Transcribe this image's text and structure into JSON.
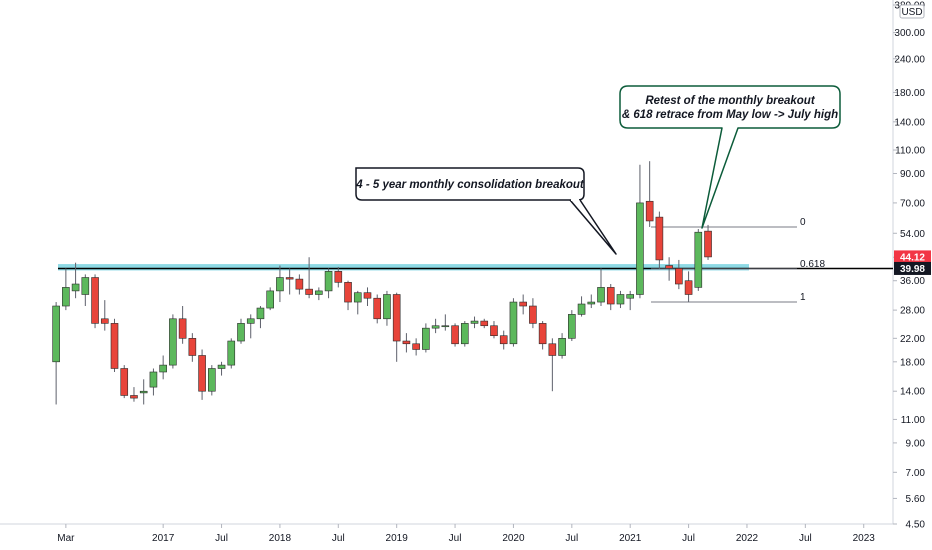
{
  "chart_data": {
    "type": "candlestick",
    "title": "",
    "xlabel": "",
    "ylabel": "",
    "scale": "log",
    "ylim": [
      4.5,
      380.0
    ],
    "currency": "USD",
    "colors": {
      "up": "#5cb85c",
      "down": "#e8443a",
      "wick": "#5d606b",
      "support_band": "#7ad3e0",
      "support_line": "#000000",
      "callout_border": "#0c5c3a",
      "price_tag_red": "#f23645",
      "price_tag_black": "#131722"
    },
    "y_ticks": [
      "380.00",
      "300.00",
      "240.00",
      "180.00",
      "140.00",
      "110.00",
      "90.00",
      "70.00",
      "54.00",
      "44.00",
      "36.00",
      "28.00",
      "22.00",
      "18.00",
      "14.00",
      "11.00",
      "9.00",
      "7.00",
      "5.60",
      "4.50"
    ],
    "x_ticks": [
      "Mar",
      "2017",
      "Jul",
      "2018",
      "Jul",
      "2019",
      "Jul",
      "2020",
      "Jul",
      "2021",
      "Jul",
      "2022",
      "Jul",
      "2023"
    ],
    "candles": [
      {
        "date": "2016-02",
        "o": 18.0,
        "h": 30.0,
        "l": 12.5,
        "c": 29.0
      },
      {
        "date": "2016-03",
        "o": 29.0,
        "h": 40.0,
        "l": 28.0,
        "c": 34.0
      },
      {
        "date": "2016-04",
        "o": 33.0,
        "h": 42.0,
        "l": 31.0,
        "c": 35.0
      },
      {
        "date": "2016-05",
        "o": 32.0,
        "h": 38.0,
        "l": 29.0,
        "c": 37.0
      },
      {
        "date": "2016-06",
        "o": 37.0,
        "h": 38.0,
        "l": 24.0,
        "c": 25.0
      },
      {
        "date": "2016-07",
        "o": 26.0,
        "h": 30.5,
        "l": 23.5,
        "c": 25.0
      },
      {
        "date": "2016-08",
        "o": 25.0,
        "h": 26.0,
        "l": 16.5,
        "c": 17.0
      },
      {
        "date": "2016-09",
        "o": 17.0,
        "h": 17.5,
        "l": 13.2,
        "c": 13.5
      },
      {
        "date": "2016-10",
        "o": 13.5,
        "h": 14.5,
        "l": 12.8,
        "c": 13.2
      },
      {
        "date": "2016-11",
        "o": 13.8,
        "h": 15.5,
        "l": 12.5,
        "c": 14.0
      },
      {
        "date": "2016-12",
        "o": 14.5,
        "h": 17.0,
        "l": 13.5,
        "c": 16.5
      },
      {
        "date": "2017-01",
        "o": 16.5,
        "h": 19.0,
        "l": 15.5,
        "c": 17.5
      },
      {
        "date": "2017-02",
        "o": 17.5,
        "h": 27.0,
        "l": 17.0,
        "c": 26.0
      },
      {
        "date": "2017-03",
        "o": 26.0,
        "h": 29.0,
        "l": 21.0,
        "c": 22.0
      },
      {
        "date": "2017-04",
        "o": 22.0,
        "h": 23.0,
        "l": 18.0,
        "c": 19.0
      },
      {
        "date": "2017-05",
        "o": 19.0,
        "h": 20.0,
        "l": 13.0,
        "c": 14.0
      },
      {
        "date": "2017-06",
        "o": 14.0,
        "h": 17.5,
        "l": 13.5,
        "c": 17.0
      },
      {
        "date": "2017-07",
        "o": 17.0,
        "h": 18.0,
        "l": 16.0,
        "c": 17.5
      },
      {
        "date": "2017-08",
        "o": 17.5,
        "h": 22.0,
        "l": 17.0,
        "c": 21.5
      },
      {
        "date": "2017-09",
        "o": 21.5,
        "h": 26.0,
        "l": 21.0,
        "c": 25.0
      },
      {
        "date": "2017-10",
        "o": 25.0,
        "h": 27.0,
        "l": 22.0,
        "c": 26.0
      },
      {
        "date": "2017-11",
        "o": 26.0,
        "h": 29.0,
        "l": 24.0,
        "c": 28.5
      },
      {
        "date": "2017-12",
        "o": 28.5,
        "h": 34.0,
        "l": 28.0,
        "c": 33.0
      },
      {
        "date": "2018-01",
        "o": 33.0,
        "h": 41.0,
        "l": 30.0,
        "c": 37.0
      },
      {
        "date": "2018-02",
        "o": 37.0,
        "h": 40.0,
        "l": 32.0,
        "c": 36.5
      },
      {
        "date": "2018-03",
        "o": 36.5,
        "h": 38.0,
        "l": 32.0,
        "c": 33.5
      },
      {
        "date": "2018-04",
        "o": 33.5,
        "h": 44.0,
        "l": 31.0,
        "c": 32.0
      },
      {
        "date": "2018-05",
        "o": 32.0,
        "h": 34.0,
        "l": 30.5,
        "c": 33.0
      },
      {
        "date": "2018-06",
        "o": 33.0,
        "h": 40.0,
        "l": 31.0,
        "c": 39.0
      },
      {
        "date": "2018-07",
        "o": 39.0,
        "h": 40.5,
        "l": 34.0,
        "c": 35.5
      },
      {
        "date": "2018-08",
        "o": 35.5,
        "h": 36.0,
        "l": 28.0,
        "c": 30.0
      },
      {
        "date": "2018-09",
        "o": 30.0,
        "h": 33.0,
        "l": 27.0,
        "c": 32.5
      },
      {
        "date": "2018-10",
        "o": 32.5,
        "h": 34.0,
        "l": 29.0,
        "c": 31.0
      },
      {
        "date": "2018-11",
        "o": 31.0,
        "h": 32.0,
        "l": 25.0,
        "c": 26.0
      },
      {
        "date": "2018-12",
        "o": 26.0,
        "h": 33.0,
        "l": 24.5,
        "c": 32.0
      },
      {
        "date": "2019-01",
        "o": 32.0,
        "h": 32.5,
        "l": 18.0,
        "c": 21.5
      },
      {
        "date": "2019-02",
        "o": 21.5,
        "h": 23.0,
        "l": 19.5,
        "c": 21.0
      },
      {
        "date": "2019-03",
        "o": 21.0,
        "h": 22.0,
        "l": 19.0,
        "c": 20.0
      },
      {
        "date": "2019-04",
        "o": 20.0,
        "h": 25.0,
        "l": 19.5,
        "c": 24.0
      },
      {
        "date": "2019-05",
        "o": 24.0,
        "h": 26.0,
        "l": 23.0,
        "c": 24.5
      },
      {
        "date": "2019-06",
        "o": 24.5,
        "h": 27.0,
        "l": 23.5,
        "c": 24.5
      },
      {
        "date": "2019-07",
        "o": 24.5,
        "h": 25.0,
        "l": 20.5,
        "c": 21.0
      },
      {
        "date": "2019-08",
        "o": 21.0,
        "h": 25.5,
        "l": 20.5,
        "c": 25.0
      },
      {
        "date": "2019-09",
        "o": 25.0,
        "h": 26.5,
        "l": 24.0,
        "c": 25.5
      },
      {
        "date": "2019-10",
        "o": 25.5,
        "h": 26.0,
        "l": 24.0,
        "c": 24.5
      },
      {
        "date": "2019-11",
        "o": 24.5,
        "h": 25.5,
        "l": 22.0,
        "c": 22.5
      },
      {
        "date": "2019-12",
        "o": 22.5,
        "h": 23.5,
        "l": 20.0,
        "c": 21.0
      },
      {
        "date": "2020-01",
        "o": 21.0,
        "h": 31.0,
        "l": 20.5,
        "c": 30.0
      },
      {
        "date": "2020-02",
        "o": 30.0,
        "h": 32.0,
        "l": 27.0,
        "c": 29.0
      },
      {
        "date": "2020-03",
        "o": 29.0,
        "h": 31.0,
        "l": 24.0,
        "c": 25.0
      },
      {
        "date": "2020-04",
        "o": 25.0,
        "h": 25.5,
        "l": 20.0,
        "c": 21.0
      },
      {
        "date": "2020-05",
        "o": 21.0,
        "h": 22.0,
        "l": 14.0,
        "c": 19.0
      },
      {
        "date": "2020-06",
        "o": 19.0,
        "h": 23.0,
        "l": 18.5,
        "c": 22.0
      },
      {
        "date": "2020-07",
        "o": 22.0,
        "h": 28.0,
        "l": 21.5,
        "c": 27.0
      },
      {
        "date": "2020-08",
        "o": 27.0,
        "h": 31.5,
        "l": 26.5,
        "c": 29.5
      },
      {
        "date": "2020-09",
        "o": 29.5,
        "h": 32.0,
        "l": 28.5,
        "c": 30.0
      },
      {
        "date": "2020-10",
        "o": 30.0,
        "h": 40.0,
        "l": 29.0,
        "c": 34.0
      },
      {
        "date": "2020-11",
        "o": 34.0,
        "h": 35.0,
        "l": 28.0,
        "c": 29.5
      },
      {
        "date": "2020-12",
        "o": 29.5,
        "h": 33.0,
        "l": 28.5,
        "c": 32.0
      },
      {
        "date": "2021-01",
        "o": 31.0,
        "h": 33.0,
        "l": 28.0,
        "c": 32.0
      },
      {
        "date": "2021-02",
        "o": 32.0,
        "h": 97.0,
        "l": 31.0,
        "c": 70.0
      },
      {
        "date": "2021-03",
        "o": 71.0,
        "h": 100.0,
        "l": 57.0,
        "c": 60.0
      },
      {
        "date": "2021-04",
        "o": 62.0,
        "h": 65.0,
        "l": 40.0,
        "c": 43.0
      },
      {
        "date": "2021-05",
        "o": 41.0,
        "h": 44.0,
        "l": 36.0,
        "c": 40.0
      },
      {
        "date": "2021-06",
        "o": 40.0,
        "h": 43.0,
        "l": 33.5,
        "c": 35.0
      },
      {
        "date": "2021-07",
        "o": 36.0,
        "h": 39.0,
        "l": 30.0,
        "c": 32.0
      },
      {
        "date": "2021-08",
        "o": 34.0,
        "h": 56.0,
        "l": 33.0,
        "c": 54.5
      },
      {
        "date": "2021-09",
        "o": 55.0,
        "h": 58.0,
        "l": 43.0,
        "c": 44.12
      }
    ],
    "support_band": {
      "from": 39.98,
      "to": 41.5
    },
    "support_line": 39.98,
    "fibonacci": [
      {
        "label": "0",
        "value": 57.0
      },
      {
        "label": "0.618",
        "value": 39.8
      },
      {
        "label": "1",
        "value": 30.0
      }
    ],
    "annotations": [
      {
        "text": "4 - 5 year monthly consolidation breakout"
      },
      {
        "text": "Retest of the monthly breakout\n& 618 retrace from May low -> July high"
      }
    ],
    "price_tags": [
      {
        "label": "44.12",
        "value": 44.12,
        "color": "#f23645"
      },
      {
        "label": "39.98",
        "value": 39.98,
        "color": "#131722"
      }
    ]
  }
}
